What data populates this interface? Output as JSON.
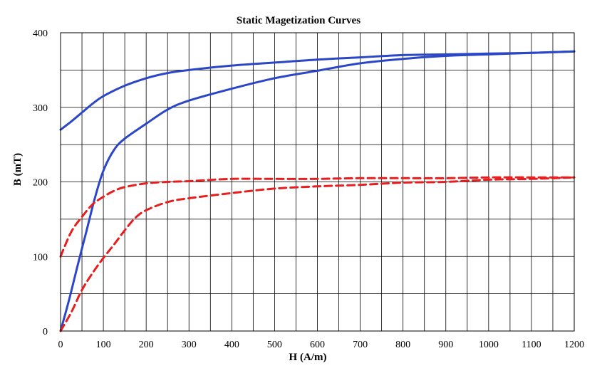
{
  "chart_data": {
    "type": "line",
    "title": "Static Magetization Curves",
    "xlabel": "H (A/m)",
    "ylabel": "B (mT)",
    "xlim": [
      0,
      1200
    ],
    "ylim": [
      0,
      400
    ],
    "x_minor_step": 50,
    "y_minor_step": 50,
    "x_ticks": [
      0,
      100,
      200,
      300,
      400,
      500,
      600,
      700,
      800,
      900,
      1000,
      1100,
      1200
    ],
    "y_ticks": [
      0,
      100,
      200,
      300,
      400
    ],
    "grid": true,
    "legend": "none",
    "colors": {
      "solid": "#2B47C8",
      "dashed": "#E81E1E"
    },
    "series": [
      {
        "style": "solid",
        "x": [
          0,
          20,
          40,
          60,
          80,
          100,
          125,
          150,
          200,
          250,
          300,
          400,
          500,
          600,
          700,
          800,
          900,
          1000,
          1100,
          1200
        ],
        "y": [
          0,
          42,
          88,
          133,
          178,
          215,
          243,
          258,
          278,
          297,
          309,
          325,
          339,
          349,
          359,
          365,
          369,
          371,
          373,
          375
        ]
      },
      {
        "style": "solid",
        "x": [
          0,
          25,
          50,
          75,
          100,
          150,
          200,
          250,
          300,
          400,
          500,
          600,
          700,
          800,
          900,
          1000,
          1100,
          1200
        ],
        "y": [
          270,
          281,
          293,
          305,
          315,
          329,
          339,
          346,
          350,
          356,
          360,
          364,
          367,
          370,
          371,
          372,
          373,
          375
        ]
      },
      {
        "style": "dashed",
        "x": [
          0,
          25,
          50,
          75,
          100,
          125,
          150,
          175,
          200,
          250,
          300,
          400,
          500,
          600,
          700,
          800,
          900,
          1000,
          1100,
          1200
        ],
        "y": [
          0,
          25,
          55,
          78,
          98,
          116,
          135,
          152,
          162,
          173,
          178,
          185,
          191,
          194,
          196,
          199,
          200,
          203,
          204,
          206
        ]
      },
      {
        "style": "dashed",
        "x": [
          0,
          25,
          50,
          75,
          100,
          125,
          150,
          200,
          250,
          300,
          400,
          500,
          600,
          700,
          800,
          900,
          1000,
          1100,
          1200
        ],
        "y": [
          100,
          133,
          153,
          170,
          180,
          188,
          193,
          198,
          200,
          201,
          204,
          204,
          204,
          205,
          205,
          205,
          206,
          206,
          206
        ]
      }
    ]
  }
}
